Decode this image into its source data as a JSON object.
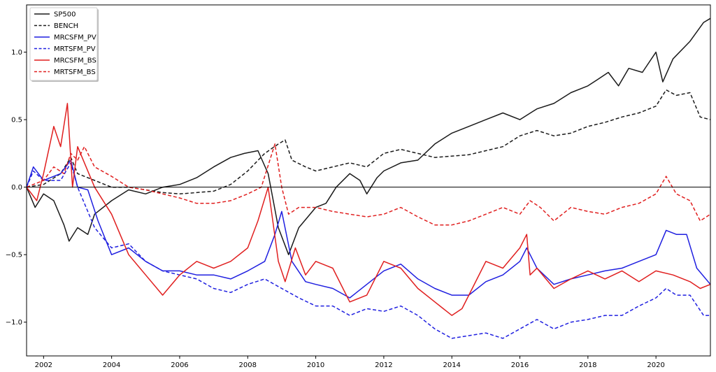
{
  "chart_data": {
    "type": "line",
    "title": "",
    "xlabel": "",
    "ylabel": "",
    "xlim": [
      2001.5,
      2021.6
    ],
    "ylim": [
      -1.25,
      1.35
    ],
    "x_ticks": [
      2002,
      2004,
      2006,
      2008,
      2010,
      2012,
      2014,
      2016,
      2018,
      2020
    ],
    "x_tick_labels": [
      "2002",
      "2004",
      "2006",
      "2008",
      "2010",
      "2012",
      "2014",
      "2016",
      "2018",
      "2020"
    ],
    "y_ticks": [
      -1.0,
      -0.5,
      0.0,
      0.5,
      1.0
    ],
    "y_tick_labels": [
      "−1.0",
      "−0.5",
      "0.0",
      "0.5",
      "1.0"
    ],
    "grid": false,
    "zero_line": true,
    "legend_position": "top-left",
    "series": [
      {
        "name": "SP500",
        "color": "#1a1a1a",
        "dash": "solid",
        "x": [
          2001.5,
          2001.75,
          2002.0,
          2002.3,
          2002.6,
          2002.75,
          2003.0,
          2003.3,
          2003.5,
          2004.0,
          2004.5,
          2005.0,
          2005.5,
          2006.0,
          2006.5,
          2007.0,
          2007.5,
          2007.9,
          2008.3,
          2008.6,
          2008.9,
          2009.2,
          2009.5,
          2010.0,
          2010.3,
          2010.6,
          2011.0,
          2011.3,
          2011.5,
          2011.8,
          2012.0,
          2012.5,
          2013.0,
          2013.5,
          2014.0,
          2014.5,
          2015.0,
          2015.5,
          2016.0,
          2016.5,
          2017.0,
          2017.5,
          2018.0,
          2018.3,
          2018.6,
          2018.9,
          2019.2,
          2019.6,
          2020.0,
          2020.2,
          2020.5,
          2021.0,
          2021.4,
          2021.6
        ],
        "y": [
          0.0,
          -0.15,
          -0.05,
          -0.1,
          -0.28,
          -0.4,
          -0.3,
          -0.35,
          -0.2,
          -0.1,
          -0.02,
          -0.05,
          0.0,
          0.02,
          0.07,
          0.15,
          0.22,
          0.25,
          0.27,
          0.1,
          -0.3,
          -0.5,
          -0.3,
          -0.15,
          -0.12,
          0.0,
          0.1,
          0.05,
          -0.05,
          0.07,
          0.12,
          0.18,
          0.2,
          0.32,
          0.4,
          0.45,
          0.5,
          0.55,
          0.5,
          0.58,
          0.62,
          0.7,
          0.75,
          0.8,
          0.85,
          0.75,
          0.88,
          0.85,
          1.0,
          0.78,
          0.95,
          1.08,
          1.22,
          1.25
        ]
      },
      {
        "name": "BENCH",
        "color": "#1a1a1a",
        "dash": "dashed",
        "x": [
          2001.5,
          2002.0,
          2002.5,
          2002.8,
          2003.0,
          2003.5,
          2004.0,
          2004.5,
          2005.0,
          2005.5,
          2006.0,
          2006.5,
          2007.0,
          2007.5,
          2008.0,
          2008.5,
          2008.9,
          2009.1,
          2009.3,
          2009.7,
          2010.0,
          2010.5,
          2011.0,
          2011.5,
          2012.0,
          2012.5,
          2013.0,
          2013.5,
          2014.0,
          2014.5,
          2015.0,
          2015.5,
          2016.0,
          2016.5,
          2017.0,
          2017.5,
          2018.0,
          2018.5,
          2019.0,
          2019.5,
          2020.0,
          2020.3,
          2020.6,
          2021.0,
          2021.3,
          2021.6
        ],
        "y": [
          0.0,
          0.02,
          0.1,
          0.22,
          0.1,
          0.05,
          0.0,
          0.0,
          -0.02,
          -0.04,
          -0.05,
          -0.04,
          -0.03,
          0.02,
          0.12,
          0.25,
          0.32,
          0.35,
          0.2,
          0.15,
          0.12,
          0.15,
          0.18,
          0.15,
          0.25,
          0.28,
          0.25,
          0.22,
          0.23,
          0.24,
          0.27,
          0.3,
          0.38,
          0.42,
          0.38,
          0.4,
          0.45,
          0.48,
          0.52,
          0.55,
          0.6,
          0.72,
          0.68,
          0.7,
          0.52,
          0.5
        ]
      },
      {
        "name": "MRCSFM_PV",
        "color": "#1f1fe0",
        "dash": "solid",
        "x": [
          2001.5,
          2001.7,
          2002.0,
          2002.5,
          2002.8,
          2003.0,
          2003.3,
          2003.6,
          2004.0,
          2004.5,
          2005.0,
          2005.5,
          2006.0,
          2006.5,
          2007.0,
          2007.5,
          2008.0,
          2008.5,
          2008.8,
          2009.0,
          2009.3,
          2009.7,
          2010.0,
          2010.5,
          2011.0,
          2011.5,
          2012.0,
          2012.5,
          2013.0,
          2013.5,
          2014.0,
          2014.5,
          2015.0,
          2015.5,
          2016.0,
          2016.2,
          2016.5,
          2017.0,
          2017.5,
          2018.0,
          2018.5,
          2019.0,
          2019.5,
          2020.0,
          2020.3,
          2020.6,
          2020.9,
          2021.2,
          2021.6
        ],
        "y": [
          0.0,
          0.15,
          0.05,
          0.1,
          0.2,
          0.0,
          -0.02,
          -0.25,
          -0.5,
          -0.45,
          -0.55,
          -0.62,
          -0.62,
          -0.65,
          -0.65,
          -0.68,
          -0.62,
          -0.55,
          -0.35,
          -0.18,
          -0.55,
          -0.7,
          -0.72,
          -0.75,
          -0.82,
          -0.72,
          -0.62,
          -0.57,
          -0.68,
          -0.75,
          -0.8,
          -0.8,
          -0.7,
          -0.65,
          -0.55,
          -0.45,
          -0.6,
          -0.72,
          -0.68,
          -0.65,
          -0.62,
          -0.6,
          -0.55,
          -0.5,
          -0.32,
          -0.35,
          -0.35,
          -0.6,
          -0.72
        ]
      },
      {
        "name": "MRTSFM_PV",
        "color": "#1f1fe0",
        "dash": "dashed",
        "x": [
          2001.5,
          2001.7,
          2002.0,
          2002.5,
          2002.8,
          2003.0,
          2003.5,
          2004.0,
          2004.5,
          2005.0,
          2005.5,
          2006.0,
          2006.5,
          2007.0,
          2007.5,
          2008.0,
          2008.5,
          2009.0,
          2009.5,
          2010.0,
          2010.5,
          2011.0,
          2011.5,
          2012.0,
          2012.5,
          2013.0,
          2013.5,
          2014.0,
          2014.5,
          2015.0,
          2015.5,
          2016.0,
          2016.5,
          2017.0,
          2017.5,
          2018.0,
          2018.5,
          2019.0,
          2019.5,
          2020.0,
          2020.3,
          2020.6,
          2021.0,
          2021.4,
          2021.6
        ],
        "y": [
          0.0,
          0.12,
          0.05,
          0.05,
          0.18,
          0.0,
          -0.3,
          -0.45,
          -0.42,
          -0.55,
          -0.62,
          -0.65,
          -0.68,
          -0.75,
          -0.78,
          -0.72,
          -0.68,
          -0.75,
          -0.82,
          -0.88,
          -0.88,
          -0.95,
          -0.9,
          -0.92,
          -0.88,
          -0.95,
          -1.05,
          -1.12,
          -1.1,
          -1.08,
          -1.12,
          -1.05,
          -0.98,
          -1.05,
          -1.0,
          -0.98,
          -0.95,
          -0.95,
          -0.88,
          -0.82,
          -0.75,
          -0.8,
          -0.8,
          -0.95,
          -0.95
        ]
      },
      {
        "name": "MRCSFM_BS",
        "color": "#e01f1f",
        "dash": "solid",
        "x": [
          2001.5,
          2001.8,
          2002.0,
          2002.3,
          2002.5,
          2002.7,
          2002.85,
          2003.0,
          2003.5,
          2004.0,
          2004.5,
          2005.0,
          2005.5,
          2006.0,
          2006.5,
          2007.0,
          2007.5,
          2008.0,
          2008.3,
          2008.6,
          2008.9,
          2009.1,
          2009.4,
          2009.7,
          2010.0,
          2010.5,
          2011.0,
          2011.5,
          2012.0,
          2012.5,
          2013.0,
          2013.5,
          2014.0,
          2014.3,
          2014.6,
          2015.0,
          2015.5,
          2016.0,
          2016.2,
          2016.3,
          2016.5,
          2017.0,
          2017.5,
          2018.0,
          2018.5,
          2019.0,
          2019.5,
          2020.0,
          2020.5,
          2021.0,
          2021.3,
          2021.6
        ],
        "y": [
          0.0,
          -0.1,
          0.1,
          0.45,
          0.3,
          0.62,
          0.0,
          0.3,
          0.0,
          -0.2,
          -0.5,
          -0.65,
          -0.8,
          -0.65,
          -0.55,
          -0.6,
          -0.55,
          -0.45,
          -0.25,
          0.0,
          -0.55,
          -0.7,
          -0.45,
          -0.65,
          -0.55,
          -0.6,
          -0.85,
          -0.8,
          -0.55,
          -0.6,
          -0.75,
          -0.85,
          -0.95,
          -0.9,
          -0.75,
          -0.55,
          -0.6,
          -0.45,
          -0.35,
          -0.65,
          -0.6,
          -0.75,
          -0.68,
          -0.62,
          -0.68,
          -0.62,
          -0.7,
          -0.62,
          -0.65,
          -0.7,
          -0.75,
          -0.72
        ]
      },
      {
        "name": "MRTSFM_BS",
        "color": "#e01f1f",
        "dash": "dashed",
        "x": [
          2001.5,
          2002.0,
          2002.3,
          2002.6,
          2002.8,
          2003.0,
          2003.2,
          2003.5,
          2004.0,
          2004.5,
          2005.0,
          2005.5,
          2006.0,
          2006.5,
          2007.0,
          2007.5,
          2008.0,
          2008.4,
          2008.8,
          2009.0,
          2009.2,
          2009.5,
          2010.0,
          2010.5,
          2011.0,
          2011.5,
          2012.0,
          2012.5,
          2013.0,
          2013.5,
          2014.0,
          2014.5,
          2015.0,
          2015.5,
          2016.0,
          2016.3,
          2016.6,
          2017.0,
          2017.5,
          2018.0,
          2018.5,
          2019.0,
          2019.5,
          2020.0,
          2020.3,
          2020.6,
          2021.0,
          2021.3,
          2021.6
        ],
        "y": [
          0.0,
          0.05,
          0.15,
          0.1,
          0.25,
          0.2,
          0.3,
          0.15,
          0.08,
          0.0,
          -0.02,
          -0.05,
          -0.08,
          -0.12,
          -0.12,
          -0.1,
          -0.05,
          0.0,
          0.32,
          0.0,
          -0.2,
          -0.15,
          -0.15,
          -0.18,
          -0.2,
          -0.22,
          -0.2,
          -0.15,
          -0.22,
          -0.28,
          -0.28,
          -0.25,
          -0.2,
          -0.15,
          -0.2,
          -0.1,
          -0.15,
          -0.25,
          -0.15,
          -0.18,
          -0.2,
          -0.15,
          -0.12,
          -0.05,
          0.08,
          -0.05,
          -0.1,
          -0.25,
          -0.2
        ]
      }
    ]
  }
}
